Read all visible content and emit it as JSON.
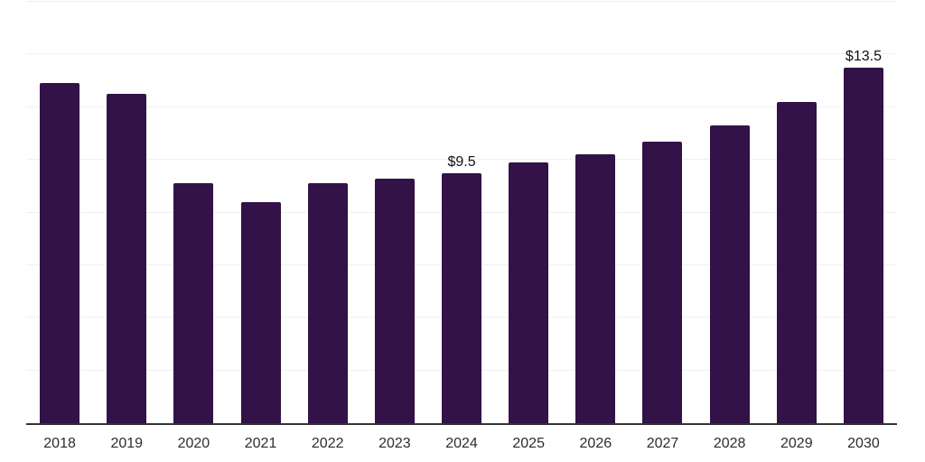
{
  "chart_data": {
    "type": "bar",
    "title": "",
    "xlabel": "",
    "ylabel": "",
    "categories": [
      "2018",
      "2019",
      "2020",
      "2021",
      "2022",
      "2023",
      "2024",
      "2025",
      "2026",
      "2027",
      "2028",
      "2029",
      "2030"
    ],
    "values": [
      12.9,
      12.5,
      9.1,
      8.4,
      9.1,
      9.3,
      9.5,
      9.9,
      10.2,
      10.7,
      11.3,
      12.2,
      13.5
    ],
    "data_labels": [
      "",
      "",
      "",
      "",
      "",
      "",
      "$9.5",
      "",
      "",
      "",
      "",
      "",
      "$13.5"
    ],
    "ylim": [
      0,
      16
    ],
    "grid_step": 2,
    "grid": true,
    "legend": false,
    "bar_color": "#321247",
    "gridline_color": "#f0f0f2",
    "axis_line_color": "#333333",
    "label_color": "#111111",
    "tick_label_color": "#2d2d2d"
  }
}
